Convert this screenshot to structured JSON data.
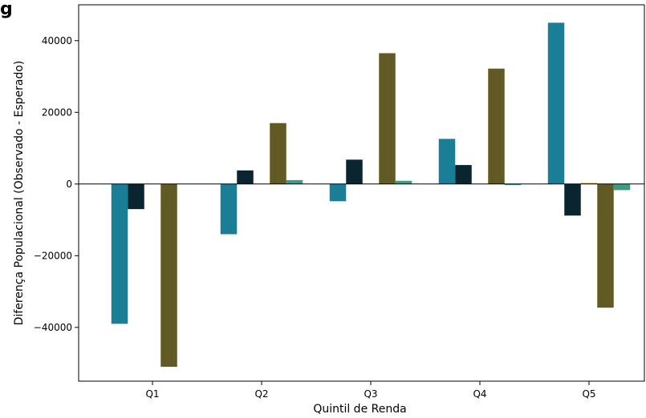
{
  "panel_letter": "g",
  "chart_data": {
    "type": "bar",
    "categories": [
      "Q1",
      "Q2",
      "Q3",
      "Q4",
      "Q5"
    ],
    "xlabel": "Quintil de Renda",
    "ylabel": "Diferença Populacional (Observado - Esperado)",
    "ylim": [
      -55000,
      50000
    ],
    "yticks": [
      -40000,
      -20000,
      0,
      20000,
      40000
    ],
    "ytick_labels": [
      "−40000",
      "−20000",
      "0",
      "20000",
      "40000"
    ],
    "grid": false,
    "legend": "none",
    "zero_line": true,
    "series": [
      {
        "color": "#1a7f96",
        "values": [
          -39000,
          -14000,
          -4800,
          12600,
          45000
        ]
      },
      {
        "color": "#0b2530",
        "values": [
          -7000,
          3800,
          6800,
          5300,
          -8800
        ]
      },
      {
        "color": "#d6a020",
        "values": [
          0,
          0,
          0,
          0,
          300
        ]
      },
      {
        "color": "#625a24",
        "values": [
          -51000,
          17000,
          36500,
          32200,
          -34500
        ]
      },
      {
        "color": "#3f9a82",
        "values": [
          0,
          1100,
          900,
          -300,
          -1700
        ]
      }
    ]
  }
}
